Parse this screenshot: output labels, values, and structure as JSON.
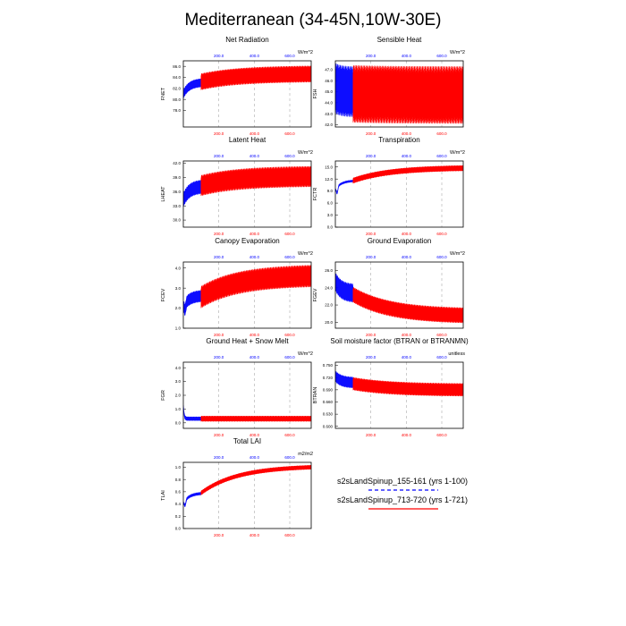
{
  "figure": {
    "title": "Mediterranean (34-45N,10W-30E)",
    "top_tick_labels": [
      "200.0",
      "400.0",
      "600.0"
    ],
    "bottom_tick_labels": [
      "200.0",
      "400.0",
      "600.0"
    ],
    "colors": {
      "run1": "#0000ff",
      "run2": "#ff0000",
      "grid": "#aaaaaa",
      "axis": "#000000"
    }
  },
  "chart_data": [
    {
      "type": "line",
      "title": "Net Radiation",
      "ylabel": "FNET",
      "units": "W/m^2",
      "xlim": [
        0,
        721
      ],
      "ylim": [
        75,
        87
      ],
      "yticks": [
        "78.0",
        "80.0",
        "82.0",
        "84.0",
        "86.0"
      ],
      "series": [
        {
          "name": "s2sLandSpinup_155-161 (yrs 1-100)",
          "x_range": [
            1,
            100
          ],
          "mean_start": 81.0,
          "mean_end": 83.0,
          "amp": 0.8,
          "dip": 0
        },
        {
          "name": "s2sLandSpinup_713-720 (yrs 1-721)",
          "x_range": [
            100,
            721
          ],
          "mean_start": 83.2,
          "mean_end": 84.6,
          "amp": 1.5
        }
      ]
    },
    {
      "type": "line",
      "title": "Sensible Heat",
      "ylabel": "FSH",
      "units": "W/m^2",
      "xlim": [
        0,
        721
      ],
      "ylim": [
        41.8,
        47.8
      ],
      "yticks": [
        "42.0",
        "43.0",
        "44.0",
        "45.0",
        "46.0",
        "47.0"
      ],
      "series": [
        {
          "name": "s2sLandSpinup_155-161 (yrs 1-100)",
          "x_range": [
            1,
            100
          ],
          "mean_start": 45.3,
          "mean_end": 45.0,
          "amp": 2.3,
          "dip": 0
        },
        {
          "name": "s2sLandSpinup_713-720 (yrs 1-721)",
          "x_range": [
            100,
            721
          ],
          "mean_start": 44.8,
          "mean_end": 44.7,
          "amp": 2.6
        }
      ]
    },
    {
      "type": "line",
      "title": "Latent Heat",
      "ylabel": "LHEAT",
      "units": "W/m^2",
      "xlim": [
        0,
        721
      ],
      "ylim": [
        28.5,
        42.5
      ],
      "yticks": [
        "30.0",
        "33.0",
        "36.0",
        "39.0",
        "42.0"
      ],
      "series": [
        {
          "name": "s2sLandSpinup_155-161 (yrs 1-100)",
          "x_range": [
            1,
            100
          ],
          "mean_start": 34.3,
          "mean_end": 37.0,
          "amp": 1.5,
          "dip": 0
        },
        {
          "name": "s2sLandSpinup_713-720 (yrs 1-721)",
          "x_range": [
            100,
            721
          ],
          "mean_start": 37.3,
          "mean_end": 39.2,
          "amp": 2.2
        }
      ]
    },
    {
      "type": "line",
      "title": "Transpiration",
      "ylabel": "FCTR",
      "units": "W/m^2",
      "xlim": [
        0,
        721
      ],
      "ylim": [
        0,
        16.5
      ],
      "yticks": [
        "0.0",
        "3.0",
        "6.0",
        "9.0",
        "12.0",
        "15.0"
      ],
      "series": [
        {
          "name": "s2sLandSpinup_155-161 (yrs 1-100)",
          "x_range": [
            1,
            100
          ],
          "mean_start": 9.5,
          "mean_end": 11.5,
          "amp": 0.3,
          "dip": -1.5
        },
        {
          "name": "s2sLandSpinup_713-720 (yrs 1-721)",
          "x_range": [
            100,
            721
          ],
          "mean_start": 11.6,
          "mean_end": 14.7,
          "amp": 0.7
        }
      ]
    },
    {
      "type": "line",
      "title": "Canopy Evaporation",
      "ylabel": "FCEV",
      "units": "W/m^2",
      "xlim": [
        0,
        721
      ],
      "ylim": [
        1.0,
        4.3
      ],
      "yticks": [
        "1.0",
        "2.0",
        "3.0",
        "4.0"
      ],
      "series": [
        {
          "name": "s2sLandSpinup_155-161 (yrs 1-100)",
          "x_range": [
            1,
            100
          ],
          "mean_start": 2.1,
          "mean_end": 2.6,
          "amp": 0.3,
          "dip": -0.3
        },
        {
          "name": "s2sLandSpinup_713-720 (yrs 1-721)",
          "x_range": [
            100,
            721
          ],
          "mean_start": 2.55,
          "mean_end": 3.6,
          "amp": 0.55
        }
      ]
    },
    {
      "type": "line",
      "title": "Ground Evaporation",
      "ylabel": "FGEV",
      "units": "W/m^2",
      "xlim": [
        0,
        721
      ],
      "ylim": [
        19.3,
        27.0
      ],
      "yticks": [
        "20.0",
        "22.0",
        "24.0",
        "26.0"
      ],
      "series": [
        {
          "name": "s2sLandSpinup_155-161 (yrs 1-100)",
          "x_range": [
            1,
            100
          ],
          "mean_start": 24.7,
          "mean_end": 23.4,
          "amp": 1.1,
          "dip": 0
        },
        {
          "name": "s2sLandSpinup_713-720 (yrs 1-721)",
          "x_range": [
            100,
            721
          ],
          "mean_start": 23.2,
          "mean_end": 20.8,
          "amp": 0.9
        }
      ]
    },
    {
      "type": "line",
      "title": "Ground Heat + Snow Melt",
      "ylabel": "FGR",
      "units": "W/m^2",
      "xlim": [
        0,
        721
      ],
      "ylim": [
        -0.4,
        4.4
      ],
      "yticks": [
        "0.0",
        "1.0",
        "2.0",
        "3.0",
        "4.0"
      ],
      "series": [
        {
          "name": "s2sLandSpinup_155-161 (yrs 1-100)",
          "x_range": [
            1,
            100
          ],
          "mean_start": 0.3,
          "mean_end": 0.3,
          "amp": 0.15,
          "spike": 1.1
        },
        {
          "name": "s2sLandSpinup_713-720 (yrs 1-721)",
          "x_range": [
            100,
            721
          ],
          "mean_start": 0.3,
          "mean_end": 0.3,
          "amp": 0.2
        }
      ]
    },
    {
      "type": "line",
      "title": "Soil moisture factor (BTRAN or BTRANMN)",
      "ylabel": "BTRAN",
      "units": "unitless",
      "xlim": [
        0,
        721
      ],
      "ylim": [
        0.595,
        0.758
      ],
      "yticks": [
        "0.600",
        "0.630",
        "0.660",
        "0.690",
        "0.720",
        "0.750"
      ],
      "series": [
        {
          "name": "s2sLandSpinup_155-161 (yrs 1-100)",
          "x_range": [
            1,
            100
          ],
          "mean_start": 0.723,
          "mean_end": 0.708,
          "amp": 0.014,
          "dip": 0
        },
        {
          "name": "s2sLandSpinup_713-720 (yrs 1-721)",
          "x_range": [
            100,
            721
          ],
          "mean_start": 0.705,
          "mean_end": 0.69,
          "amp": 0.016
        }
      ]
    },
    {
      "type": "line",
      "title": "Total LAI",
      "ylabel": "TLAI",
      "units": "m2/m2",
      "xlim": [
        0,
        721
      ],
      "ylim": [
        0.0,
        1.08
      ],
      "yticks": [
        "0.0",
        "0.2",
        "0.4",
        "0.6",
        "0.8",
        "1.0"
      ],
      "series": [
        {
          "name": "s2sLandSpinup_155-161 (yrs 1-100)",
          "x_range": [
            1,
            100
          ],
          "mean_start": 0.42,
          "mean_end": 0.57,
          "amp": 0.025,
          "dip": -0.08
        },
        {
          "name": "s2sLandSpinup_713-720 (yrs 1-721)",
          "x_range": [
            100,
            721
          ],
          "mean_start": 0.58,
          "mean_end": 1.0,
          "amp": 0.035
        }
      ]
    }
  ],
  "legend": [
    {
      "label": "s2sLandSpinup_155-161 (yrs 1-100)",
      "color": "#0000ff",
      "style": "dashed"
    },
    {
      "label": "s2sLandSpinup_713-720 (yrs 1-721)",
      "color": "#ff0000",
      "style": "solid"
    }
  ]
}
